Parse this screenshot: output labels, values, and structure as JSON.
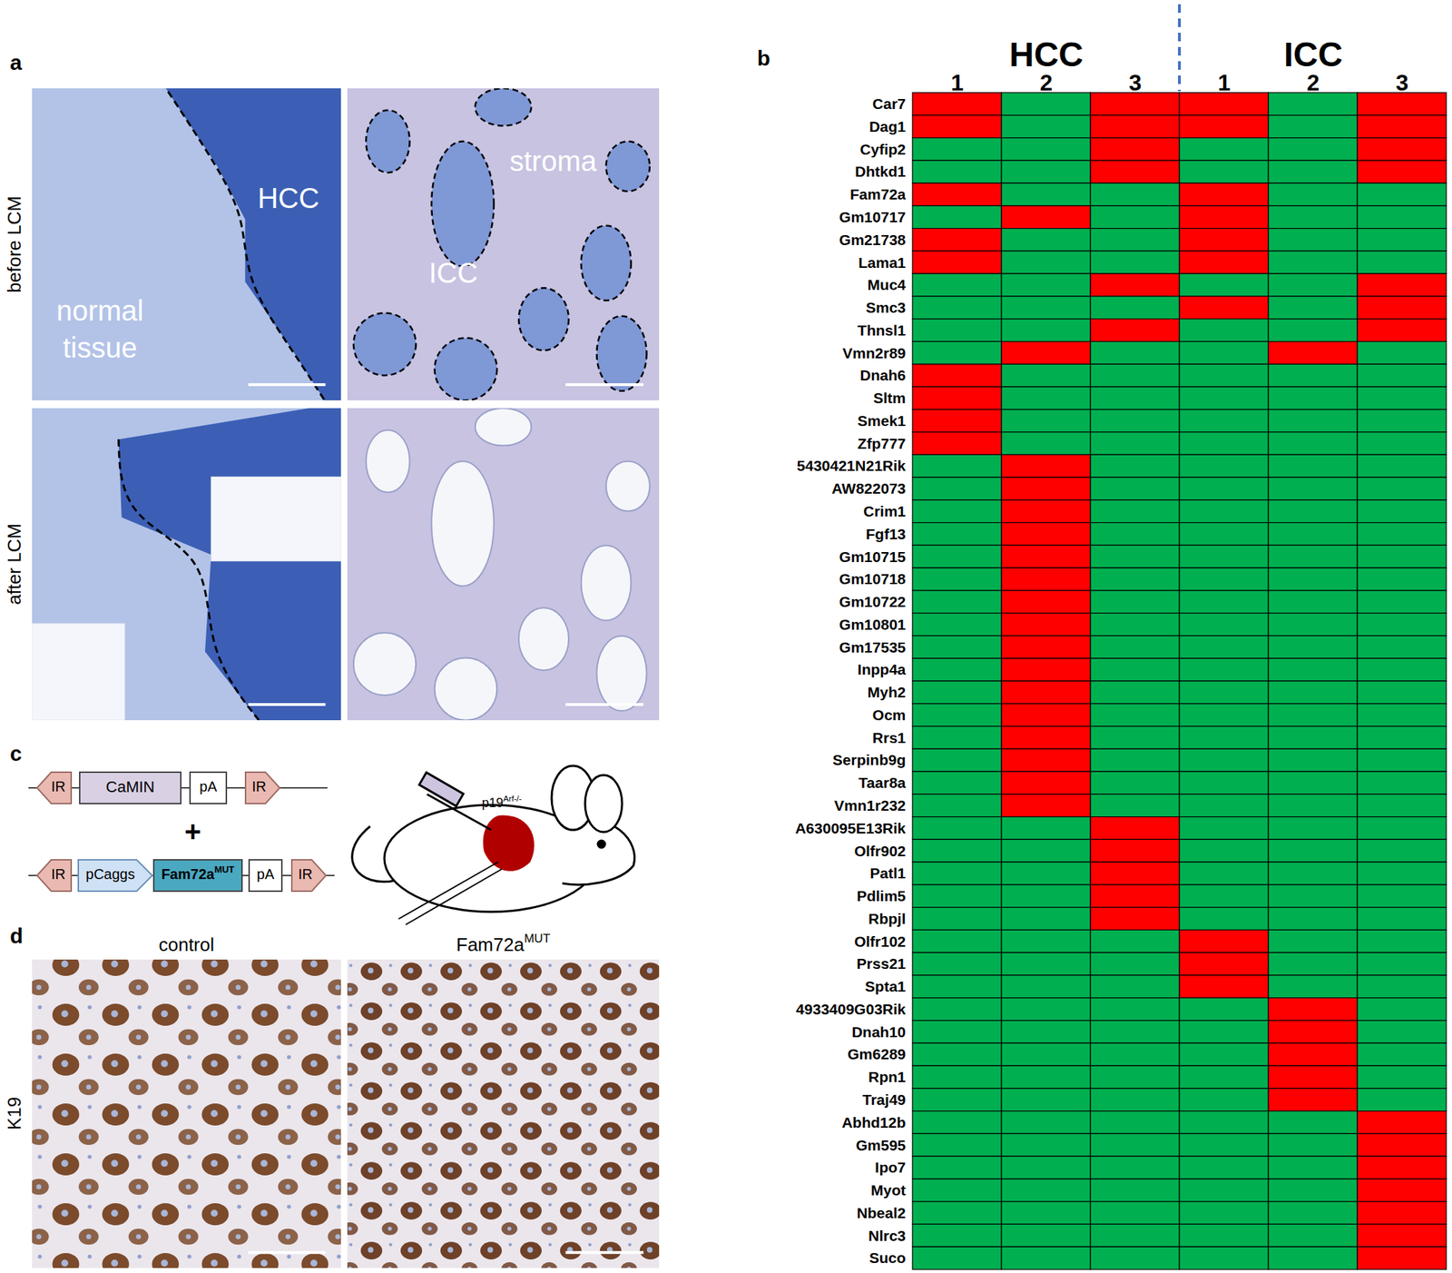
{
  "chart_data": {
    "type": "heatmap",
    "groups": [
      {
        "name": "HCC",
        "columns": 3
      },
      {
        "name": "ICC",
        "columns": 3
      }
    ],
    "columns": [
      "1",
      "2",
      "3",
      "1",
      "2",
      "3"
    ],
    "rows": [
      "Car7",
      "Dag1",
      "Cyfip2",
      "Dhtkd1",
      "Fam72a",
      "Gm10717",
      "Gm21738",
      "Lama1",
      "Muc4",
      "Smc3",
      "Thnsl1",
      "Vmn2r89",
      "Dnah6",
      "Sltm",
      "Smek1",
      "Zfp777",
      "5430421N21Rik",
      "AW822073",
      "Crim1",
      "Fgf13",
      "Gm10715",
      "Gm10718",
      "Gm10722",
      "Gm10801",
      "Gm17535",
      "Inpp4a",
      "Myh2",
      "Ocm",
      "Rrs1",
      "Serpinb9g",
      "Taar8a",
      "Vmn1r232",
      "A630095E13Rik",
      "Olfr902",
      "Patl1",
      "Pdlim5",
      "Rbpjl",
      "Olfr102",
      "Prss21",
      "Spta1",
      "4933409G03Rik",
      "Dnah10",
      "Gm6289",
      "Rpn1",
      "Traj49",
      "Abhd12b",
      "Gm595",
      "Ipo7",
      "Myot",
      "Nbeal2",
      "Nlrc3",
      "Suco"
    ],
    "cells": [
      [
        1,
        0,
        1,
        1,
        0,
        1
      ],
      [
        1,
        0,
        1,
        1,
        0,
        1
      ],
      [
        0,
        0,
        1,
        0,
        0,
        1
      ],
      [
        0,
        0,
        1,
        0,
        0,
        1
      ],
      [
        1,
        0,
        0,
        1,
        0,
        0
      ],
      [
        0,
        1,
        0,
        1,
        0,
        0
      ],
      [
        1,
        0,
        0,
        1,
        0,
        0
      ],
      [
        1,
        0,
        0,
        1,
        0,
        0
      ],
      [
        0,
        0,
        1,
        0,
        0,
        1
      ],
      [
        0,
        0,
        0,
        1,
        0,
        1
      ],
      [
        0,
        0,
        1,
        0,
        0,
        1
      ],
      [
        0,
        1,
        0,
        0,
        1,
        0
      ],
      [
        1,
        0,
        0,
        0,
        0,
        0
      ],
      [
        1,
        0,
        0,
        0,
        0,
        0
      ],
      [
        1,
        0,
        0,
        0,
        0,
        0
      ],
      [
        1,
        0,
        0,
        0,
        0,
        0
      ],
      [
        0,
        1,
        0,
        0,
        0,
        0
      ],
      [
        0,
        1,
        0,
        0,
        0,
        0
      ],
      [
        0,
        1,
        0,
        0,
        0,
        0
      ],
      [
        0,
        1,
        0,
        0,
        0,
        0
      ],
      [
        0,
        1,
        0,
        0,
        0,
        0
      ],
      [
        0,
        1,
        0,
        0,
        0,
        0
      ],
      [
        0,
        1,
        0,
        0,
        0,
        0
      ],
      [
        0,
        1,
        0,
        0,
        0,
        0
      ],
      [
        0,
        1,
        0,
        0,
        0,
        0
      ],
      [
        0,
        1,
        0,
        0,
        0,
        0
      ],
      [
        0,
        1,
        0,
        0,
        0,
        0
      ],
      [
        0,
        1,
        0,
        0,
        0,
        0
      ],
      [
        0,
        1,
        0,
        0,
        0,
        0
      ],
      [
        0,
        1,
        0,
        0,
        0,
        0
      ],
      [
        0,
        1,
        0,
        0,
        0,
        0
      ],
      [
        0,
        1,
        0,
        0,
        0,
        0
      ],
      [
        0,
        0,
        1,
        0,
        0,
        0
      ],
      [
        0,
        0,
        1,
        0,
        0,
        0
      ],
      [
        0,
        0,
        1,
        0,
        0,
        0
      ],
      [
        0,
        0,
        1,
        0,
        0,
        0
      ],
      [
        0,
        0,
        1,
        0,
        0,
        0
      ],
      [
        0,
        0,
        0,
        1,
        0,
        0
      ],
      [
        0,
        0,
        0,
        1,
        0,
        0
      ],
      [
        0,
        0,
        0,
        1,
        0,
        0
      ],
      [
        0,
        0,
        0,
        0,
        1,
        0
      ],
      [
        0,
        0,
        0,
        0,
        1,
        0
      ],
      [
        0,
        0,
        0,
        0,
        1,
        0
      ],
      [
        0,
        0,
        0,
        0,
        1,
        0
      ],
      [
        0,
        0,
        0,
        0,
        1,
        0
      ],
      [
        0,
        0,
        0,
        0,
        0,
        1
      ],
      [
        0,
        0,
        0,
        0,
        0,
        1
      ],
      [
        0,
        0,
        0,
        0,
        0,
        1
      ],
      [
        0,
        0,
        0,
        0,
        0,
        1
      ],
      [
        0,
        0,
        0,
        0,
        0,
        1
      ],
      [
        0,
        0,
        0,
        0,
        0,
        1
      ],
      [
        0,
        0,
        0,
        0,
        0,
        1
      ]
    ],
    "colors": [
      "#00b050",
      "#ff0000"
    ]
  },
  "panels": {
    "a": {
      "letter": "a",
      "row_labels": [
        "before LCM",
        "after LCM"
      ],
      "normal_tissue": [
        "normal",
        "tissue"
      ],
      "hcc": "HCC",
      "icc": "ICC",
      "stroma": "stroma"
    },
    "b": {
      "letter": "b"
    },
    "c": {
      "letter": "c",
      "ir": "IR",
      "camin": "CaMIN",
      "pa": "pA",
      "plus": "+",
      "pcaggs": "pCaggs",
      "gene": {
        "text": "Fam72a",
        "sup": "MUT"
      },
      "mouse": {
        "text": "p19",
        "sup": "Arf-/-"
      }
    },
    "d": {
      "letter": "d",
      "control": "control",
      "mutant": {
        "text": "Fam72a",
        "sup": "MUT"
      },
      "stain": "K19"
    }
  }
}
